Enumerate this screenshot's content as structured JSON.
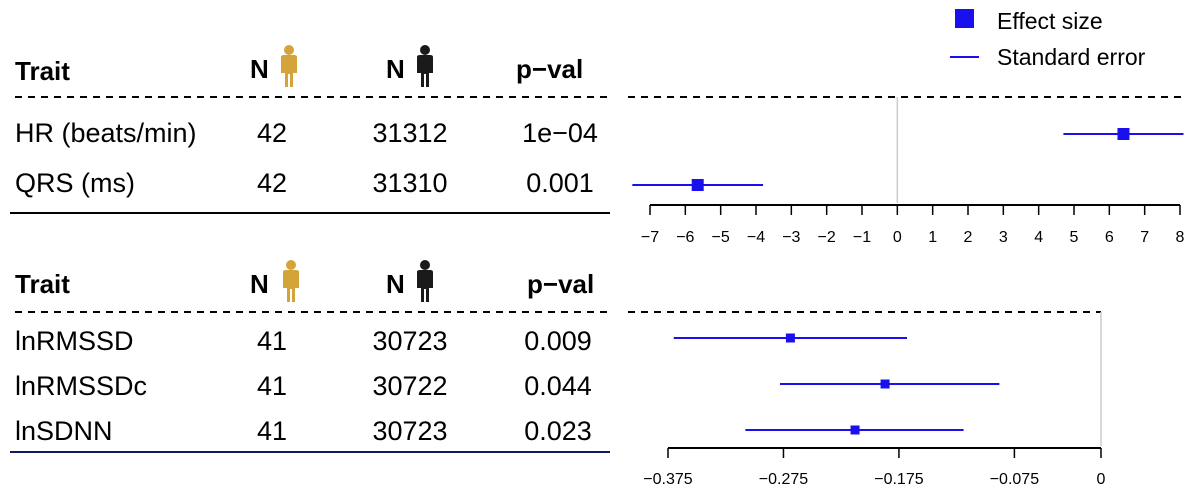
{
  "legend": {
    "effect_label": "Effect size",
    "se_label": "Standard error"
  },
  "colors": {
    "effect": "#1a10ee",
    "female_icon": "#d4a43a",
    "male_icon": "#1a1a1a",
    "zero_line": "#cccccc"
  },
  "icons": {
    "female": "female-person-icon",
    "male": "male-person-icon"
  },
  "chart_data": [
    {
      "type": "forest",
      "columns": [
        "Trait",
        "N",
        "N",
        "p−val"
      ],
      "rows": [
        {
          "trait": "HR (beats/min)",
          "n_female": "42",
          "n_male": "31312",
          "pval": "1e−04",
          "effect": 6.4,
          "se_low": 4.7,
          "se_high": 8.1
        },
        {
          "trait": "QRS (ms)",
          "n_female": "42",
          "n_male": "31310",
          "pval": "0.001",
          "effect": -5.65,
          "se_low": -7.5,
          "se_high": -3.8
        }
      ],
      "xlim": [
        -7,
        8
      ],
      "ticks": [
        -7,
        -6,
        -5,
        -4,
        -3,
        -2,
        -1,
        0,
        1,
        2,
        3,
        4,
        5,
        6,
        7,
        8
      ],
      "tick_labels": [
        "−7",
        "−6",
        "−5",
        "−4",
        "−3",
        "−2",
        "−1",
        "0",
        "1",
        "2",
        "3",
        "4",
        "5",
        "6",
        "7",
        "8"
      ],
      "reference_line": 0
    },
    {
      "type": "forest",
      "columns": [
        "Trait",
        "N",
        "N",
        "p−val"
      ],
      "rows": [
        {
          "trait": "lnRMSSD",
          "n_female": "41",
          "n_male": "30723",
          "pval": "0.009",
          "effect": -0.269,
          "se_low": -0.37,
          "se_high": -0.168
        },
        {
          "trait": "lnRMSSDc",
          "n_female": "41",
          "n_male": "30722",
          "pval": "0.044",
          "effect": -0.187,
          "se_low": -0.278,
          "se_high": -0.088
        },
        {
          "trait": "lnSDNN",
          "n_female": "41",
          "n_male": "30723",
          "pval": "0.023",
          "effect": -0.213,
          "se_low": -0.308,
          "se_high": -0.119
        }
      ],
      "xlim": [
        -0.375,
        0
      ],
      "ticks": [
        -0.375,
        -0.275,
        -0.175,
        -0.075,
        0
      ],
      "tick_labels": [
        "−0.375",
        "−0.275",
        "−0.175",
        "−0.075",
        "0"
      ],
      "reference_line": 0
    }
  ]
}
